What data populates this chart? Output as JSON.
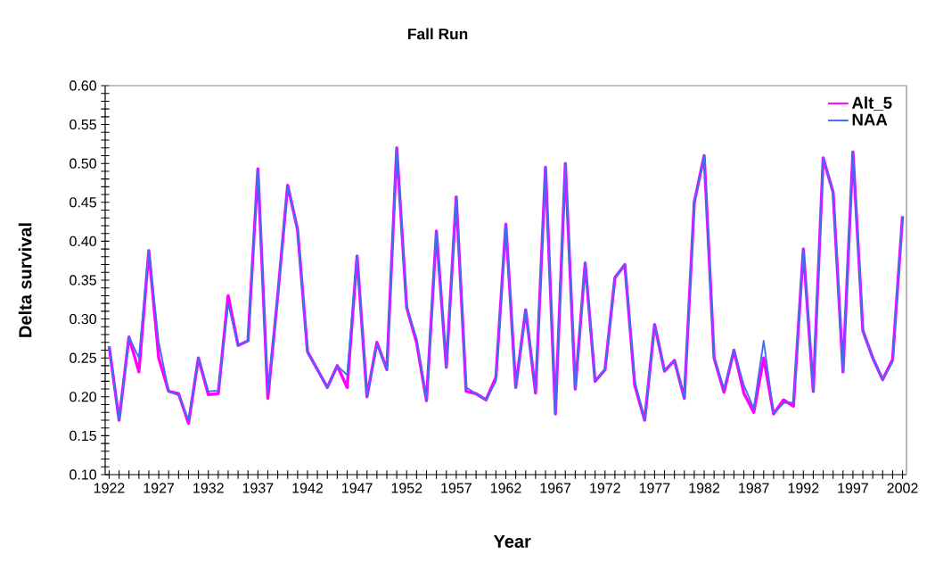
{
  "chart_data": {
    "type": "line",
    "title": "Fall Run",
    "xlabel": "Year",
    "ylabel": "Delta survival",
    "x": [
      1922,
      1923,
      1924,
      1925,
      1926,
      1927,
      1928,
      1929,
      1930,
      1931,
      1932,
      1933,
      1934,
      1935,
      1936,
      1937,
      1938,
      1939,
      1940,
      1941,
      1942,
      1943,
      1944,
      1945,
      1946,
      1947,
      1948,
      1949,
      1950,
      1951,
      1952,
      1953,
      1954,
      1955,
      1956,
      1957,
      1958,
      1959,
      1960,
      1961,
      1962,
      1963,
      1964,
      1965,
      1966,
      1967,
      1968,
      1969,
      1970,
      1971,
      1972,
      1973,
      1974,
      1975,
      1976,
      1977,
      1978,
      1979,
      1980,
      1981,
      1982,
      1983,
      1984,
      1985,
      1986,
      1987,
      1988,
      1989,
      1990,
      1991,
      1992,
      1993,
      1994,
      1995,
      1996,
      1997,
      1998,
      1999,
      2000,
      2001,
      2002
    ],
    "series": [
      {
        "name": "Alt_5",
        "color": "#ff00ff",
        "values": [
          0.265,
          0.17,
          0.277,
          0.232,
          0.388,
          0.25,
          0.207,
          0.204,
          0.166,
          0.25,
          0.203,
          0.204,
          0.33,
          0.266,
          0.272,
          0.493,
          0.198,
          0.33,
          0.472,
          0.415,
          0.258,
          0.235,
          0.212,
          0.24,
          0.212,
          0.381,
          0.2,
          0.27,
          0.235,
          0.52,
          0.315,
          0.27,
          0.195,
          0.413,
          0.238,
          0.457,
          0.207,
          0.204,
          0.196,
          0.225,
          0.422,
          0.212,
          0.312,
          0.205,
          0.495,
          0.178,
          0.5,
          0.21,
          0.372,
          0.22,
          0.235,
          0.353,
          0.37,
          0.215,
          0.17,
          0.293,
          0.233,
          0.247,
          0.198,
          0.45,
          0.51,
          0.25,
          0.206,
          0.26,
          0.205,
          0.18,
          0.25,
          0.178,
          0.196,
          0.188,
          0.39,
          0.207,
          0.507,
          0.463,
          0.232,
          0.515,
          0.285,
          0.25,
          0.222,
          0.248,
          0.432
        ]
      },
      {
        "name": "NAA",
        "color": "#3f6df5",
        "values": [
          0.265,
          0.17,
          0.277,
          0.25,
          0.388,
          0.27,
          0.207,
          0.202,
          0.17,
          0.25,
          0.207,
          0.208,
          0.32,
          0.266,
          0.272,
          0.493,
          0.205,
          0.33,
          0.472,
          0.415,
          0.258,
          0.235,
          0.212,
          0.24,
          0.228,
          0.381,
          0.2,
          0.268,
          0.235,
          0.52,
          0.315,
          0.275,
          0.195,
          0.413,
          0.238,
          0.457,
          0.212,
          0.204,
          0.196,
          0.22,
          0.422,
          0.212,
          0.312,
          0.208,
          0.495,
          0.178,
          0.5,
          0.21,
          0.372,
          0.22,
          0.235,
          0.353,
          0.37,
          0.22,
          0.17,
          0.293,
          0.233,
          0.247,
          0.198,
          0.45,
          0.51,
          0.25,
          0.21,
          0.26,
          0.215,
          0.185,
          0.272,
          0.178,
          0.192,
          0.193,
          0.39,
          0.207,
          0.507,
          0.463,
          0.232,
          0.515,
          0.285,
          0.25,
          0.222,
          0.245,
          0.432
        ]
      }
    ],
    "xlim": [
      1921.6,
      2002.4
    ],
    "xticks": [
      1922,
      {
        "value": 1923,
        "label": null
      },
      {
        "value": 1924,
        "label": null
      },
      {
        "value": 1925,
        "label": null
      },
      {
        "value": 1926,
        "label": null
      },
      1927,
      {
        "value": 1928,
        "label": null
      },
      {
        "value": 1929,
        "label": null
      },
      {
        "value": 1930,
        "label": null
      },
      {
        "value": 1931,
        "label": null
      },
      1932,
      {
        "value": 1933,
        "label": null
      },
      {
        "value": 1934,
        "label": null
      },
      {
        "value": 1935,
        "label": null
      },
      {
        "value": 1936,
        "label": null
      },
      1937,
      {
        "value": 1938,
        "label": null
      },
      {
        "value": 1939,
        "label": null
      },
      {
        "value": 1940,
        "label": null
      },
      {
        "value": 1941,
        "label": null
      },
      1942,
      {
        "value": 1943,
        "label": null
      },
      {
        "value": 1944,
        "label": null
      },
      {
        "value": 1945,
        "label": null
      },
      {
        "value": 1946,
        "label": null
      },
      1947,
      {
        "value": 1948,
        "label": null
      },
      {
        "value": 1949,
        "label": null
      },
      {
        "value": 1950,
        "label": null
      },
      {
        "value": 1951,
        "label": null
      },
      1952,
      {
        "value": 1953,
        "label": null
      },
      {
        "value": 1954,
        "label": null
      },
      {
        "value": 1955,
        "label": null
      },
      {
        "value": 1956,
        "label": null
      },
      1957,
      {
        "value": 1958,
        "label": null
      },
      {
        "value": 1959,
        "label": null
      },
      {
        "value": 1960,
        "label": null
      },
      {
        "value": 1961,
        "label": null
      },
      1962,
      {
        "value": 1963,
        "label": null
      },
      {
        "value": 1964,
        "label": null
      },
      {
        "value": 1965,
        "label": null
      },
      {
        "value": 1966,
        "label": null
      },
      1967,
      {
        "value": 1968,
        "label": null
      },
      {
        "value": 1969,
        "label": null
      },
      {
        "value": 1970,
        "label": null
      },
      {
        "value": 1971,
        "label": null
      },
      1972,
      {
        "value": 1973,
        "label": null
      },
      {
        "value": 1974,
        "label": null
      },
      {
        "value": 1975,
        "label": null
      },
      {
        "value": 1976,
        "label": null
      },
      1977,
      {
        "value": 1978,
        "label": null
      },
      {
        "value": 1979,
        "label": null
      },
      {
        "value": 1980,
        "label": null
      },
      {
        "value": 1981,
        "label": null
      },
      1982,
      {
        "value": 1983,
        "label": null
      },
      {
        "value": 1984,
        "label": null
      },
      {
        "value": 1985,
        "label": null
      },
      {
        "value": 1986,
        "label": null
      },
      1987,
      {
        "value": 1988,
        "label": null
      },
      {
        "value": 1989,
        "label": null
      },
      {
        "value": 1990,
        "label": null
      },
      {
        "value": 1991,
        "label": null
      },
      1992,
      {
        "value": 1993,
        "label": null
      },
      {
        "value": 1994,
        "label": null
      },
      {
        "value": 1995,
        "label": null
      },
      {
        "value": 1996,
        "label": null
      },
      1997,
      {
        "value": 1998,
        "label": null
      },
      {
        "value": 1999,
        "label": null
      },
      {
        "value": 2000,
        "label": null
      },
      {
        "value": 2001,
        "label": null
      },
      2002
    ],
    "ylim": [
      0.1,
      0.6
    ],
    "yticks": [
      {
        "value": 0.1,
        "label": "0.10"
      },
      {
        "value": 0.11,
        "label": null
      },
      {
        "value": 0.12,
        "label": null
      },
      {
        "value": 0.13,
        "label": null
      },
      {
        "value": 0.14,
        "label": null
      },
      {
        "value": 0.15,
        "label": "0.15"
      },
      {
        "value": 0.16,
        "label": null
      },
      {
        "value": 0.17,
        "label": null
      },
      {
        "value": 0.18,
        "label": null
      },
      {
        "value": 0.19,
        "label": null
      },
      {
        "value": 0.2,
        "label": "0.20"
      },
      {
        "value": 0.21,
        "label": null
      },
      {
        "value": 0.22,
        "label": null
      },
      {
        "value": 0.23,
        "label": null
      },
      {
        "value": 0.24,
        "label": null
      },
      {
        "value": 0.25,
        "label": "0.25"
      },
      {
        "value": 0.26,
        "label": null
      },
      {
        "value": 0.27,
        "label": null
      },
      {
        "value": 0.28,
        "label": null
      },
      {
        "value": 0.29,
        "label": null
      },
      {
        "value": 0.3,
        "label": "0.30"
      },
      {
        "value": 0.31,
        "label": null
      },
      {
        "value": 0.32,
        "label": null
      },
      {
        "value": 0.33,
        "label": null
      },
      {
        "value": 0.34,
        "label": null
      },
      {
        "value": 0.35,
        "label": "0.35"
      },
      {
        "value": 0.36,
        "label": null
      },
      {
        "value": 0.37,
        "label": null
      },
      {
        "value": 0.38,
        "label": null
      },
      {
        "value": 0.39,
        "label": null
      },
      {
        "value": 0.4,
        "label": "0.40"
      },
      {
        "value": 0.41,
        "label": null
      },
      {
        "value": 0.42,
        "label": null
      },
      {
        "value": 0.43,
        "label": null
      },
      {
        "value": 0.44,
        "label": null
      },
      {
        "value": 0.45,
        "label": "0.45"
      },
      {
        "value": 0.46,
        "label": null
      },
      {
        "value": 0.47,
        "label": null
      },
      {
        "value": 0.48,
        "label": null
      },
      {
        "value": 0.49,
        "label": null
      },
      {
        "value": 0.5,
        "label": "0.50"
      },
      {
        "value": 0.51,
        "label": null
      },
      {
        "value": 0.52,
        "label": null
      },
      {
        "value": 0.53,
        "label": null
      },
      {
        "value": 0.54,
        "label": null
      },
      {
        "value": 0.55,
        "label": "0.55"
      },
      {
        "value": 0.56,
        "label": null
      },
      {
        "value": 0.57,
        "label": null
      },
      {
        "value": 0.58,
        "label": null
      },
      {
        "value": 0.59,
        "label": null
      },
      {
        "value": 0.6,
        "label": "0.60"
      }
    ],
    "grid": false,
    "legend": "top right",
    "marker": "none",
    "line_style": "solid"
  }
}
